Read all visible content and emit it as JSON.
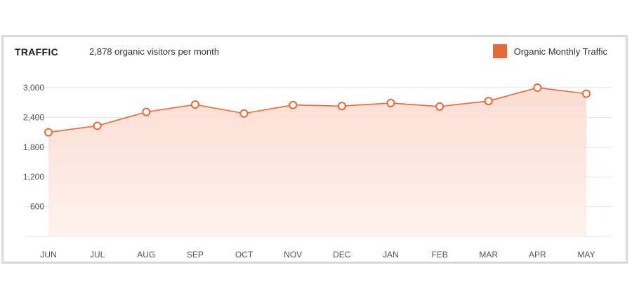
{
  "header": {
    "title": "TRAFFIC",
    "subtitle": "2,878 organic visitors per month"
  },
  "legend": {
    "label": "Organic Monthly Traffic",
    "color": "#e8693a"
  },
  "chart_data": {
    "type": "area",
    "categories": [
      "JUN",
      "JUL",
      "AUG",
      "SEP",
      "OCT",
      "NOV",
      "DEC",
      "JAN",
      "FEB",
      "MAR",
      "APR",
      "MAY"
    ],
    "series": [
      {
        "name": "Organic Monthly Traffic",
        "values": [
          2100,
          2230,
          2510,
          2660,
          2480,
          2650,
          2630,
          2690,
          2620,
          2730,
          3000,
          2878
        ]
      }
    ],
    "yticks": [
      600,
      1200,
      1800,
      2400,
      3000
    ],
    "ytick_labels": [
      "600",
      "1,200",
      "1,800",
      "2,400",
      "3,000"
    ],
    "ylim": [
      0,
      3000
    ],
    "grid": true,
    "line_color": "#e8693a",
    "fill_color_top": "#fcd9cc",
    "fill_color_bottom": "#fdf0eb",
    "legend_position": "top-right"
  }
}
